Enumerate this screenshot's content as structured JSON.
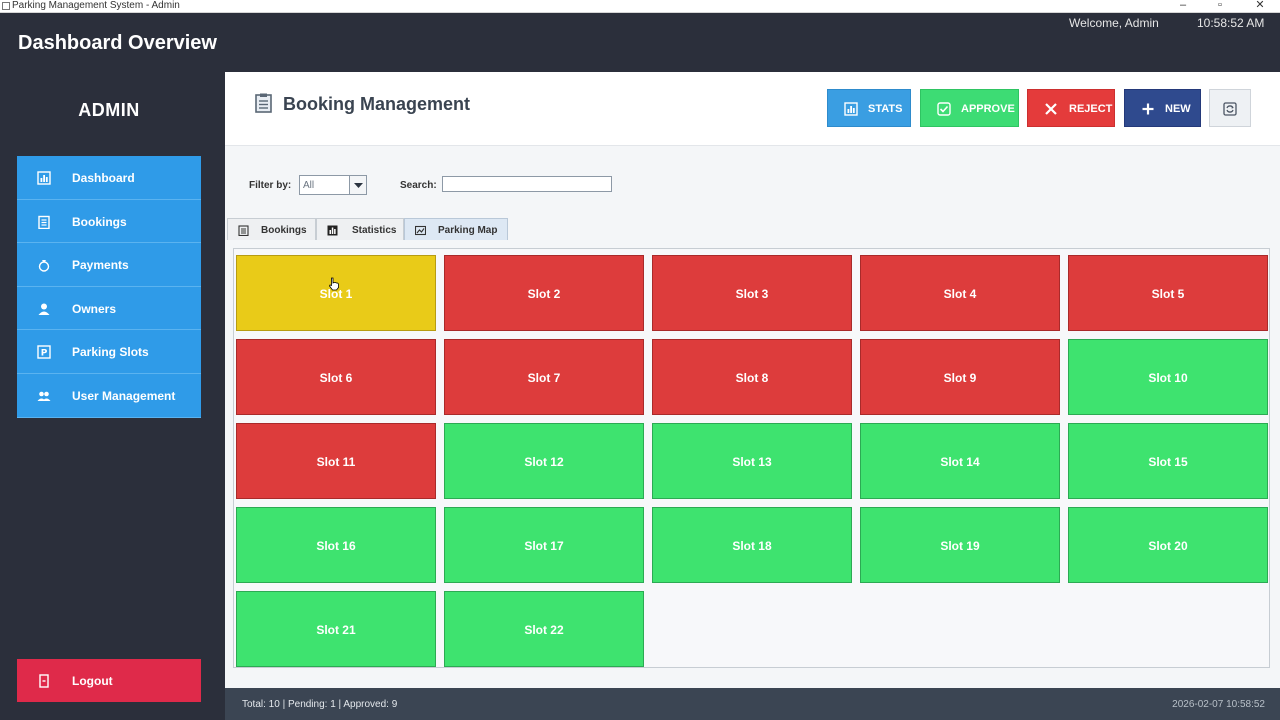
{
  "window": {
    "title": "Parking Management System - Admin",
    "controls": [
      "–",
      "▫",
      "✕"
    ]
  },
  "header": {
    "title": "Dashboard Overview",
    "welcome": "Welcome, Admin",
    "time": "10:58:52 AM"
  },
  "sidebar": {
    "role": "ADMIN",
    "items": [
      {
        "label": "Dashboard",
        "icon": "chart-icon"
      },
      {
        "label": "Bookings",
        "icon": "clipboard-icon"
      },
      {
        "label": "Payments",
        "icon": "money-bag-icon"
      },
      {
        "label": "Owners",
        "icon": "user-icon"
      },
      {
        "label": "Parking Slots",
        "icon": "parking-icon"
      },
      {
        "label": "User Management",
        "icon": "users-icon"
      }
    ],
    "logout": "Logout"
  },
  "section": {
    "title": "Booking Management",
    "buttons": {
      "stats": "STATS",
      "approve": "APPROVE",
      "reject": "REJECT",
      "new": "NEW"
    }
  },
  "filter": {
    "filter_label": "Filter by:",
    "filter_value": "All",
    "search_label": "Search:",
    "search_value": ""
  },
  "tabs": [
    {
      "label": "Bookings"
    },
    {
      "label": "Statistics"
    },
    {
      "label": "Parking Map",
      "active": true
    }
  ],
  "slots": [
    {
      "label": "Slot 1",
      "status": "pending"
    },
    {
      "label": "Slot 2",
      "status": "occupied"
    },
    {
      "label": "Slot 3",
      "status": "occupied"
    },
    {
      "label": "Slot 4",
      "status": "occupied"
    },
    {
      "label": "Slot 5",
      "status": "occupied"
    },
    {
      "label": "Slot 6",
      "status": "occupied"
    },
    {
      "label": "Slot 7",
      "status": "occupied"
    },
    {
      "label": "Slot 8",
      "status": "occupied"
    },
    {
      "label": "Slot 9",
      "status": "occupied"
    },
    {
      "label": "Slot 10",
      "status": "available"
    },
    {
      "label": "Slot 11",
      "status": "occupied"
    },
    {
      "label": "Slot 12",
      "status": "available"
    },
    {
      "label": "Slot 13",
      "status": "available"
    },
    {
      "label": "Slot 14",
      "status": "available"
    },
    {
      "label": "Slot 15",
      "status": "available"
    },
    {
      "label": "Slot 16",
      "status": "available"
    },
    {
      "label": "Slot 17",
      "status": "available"
    },
    {
      "label": "Slot 18",
      "status": "available"
    },
    {
      "label": "Slot 19",
      "status": "available"
    },
    {
      "label": "Slot 20",
      "status": "available"
    },
    {
      "label": "Slot 21",
      "status": "available"
    },
    {
      "label": "Slot 22",
      "status": "available"
    }
  ],
  "status_colors": {
    "available": "#3ee36f",
    "occupied": "#dd3c3c",
    "pending": "#e9cb18"
  },
  "statusbar": {
    "summary": "Total: 10 | Pending: 1 | Approved: 9",
    "datetime": "2026-02-07 10:58:52"
  }
}
